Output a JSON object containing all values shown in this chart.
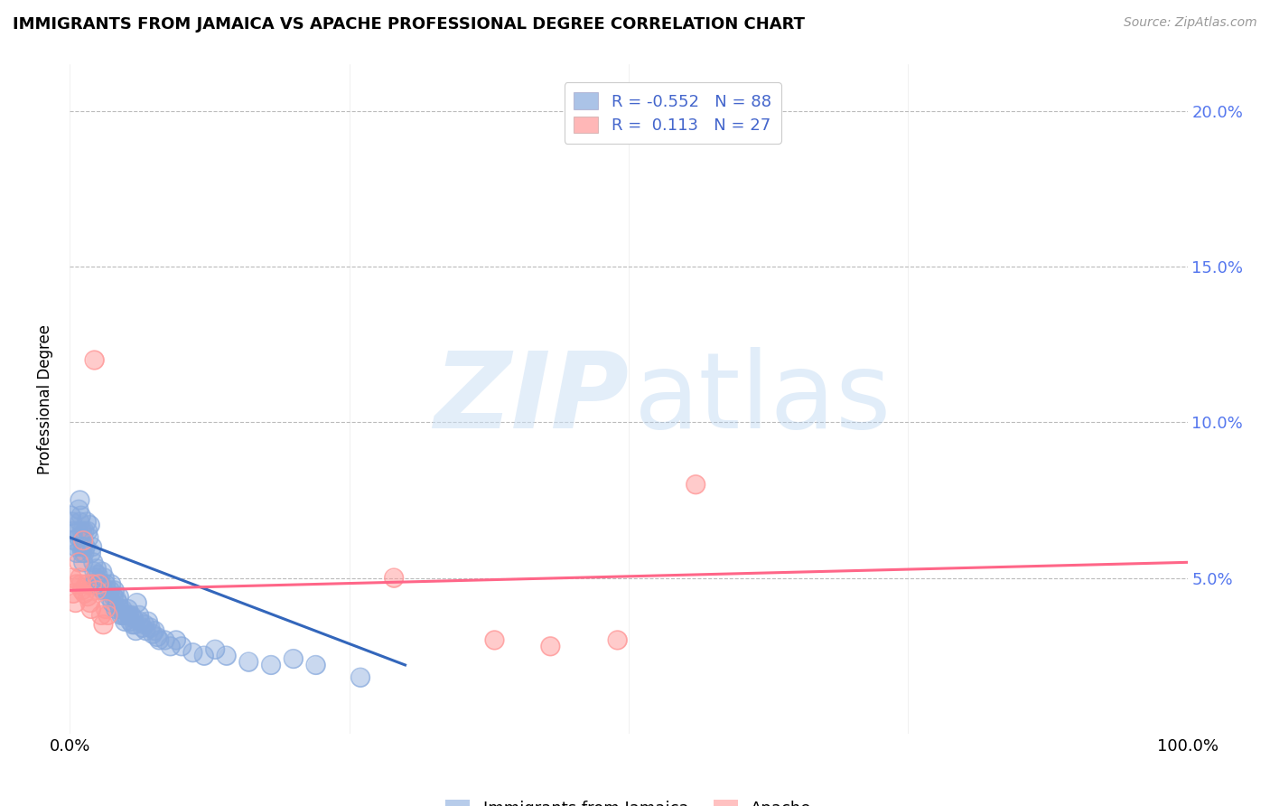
{
  "title": "IMMIGRANTS FROM JAMAICA VS APACHE PROFESSIONAL DEGREE CORRELATION CHART",
  "source": "Source: ZipAtlas.com",
  "ylabel": "Professional Degree",
  "ytick_vals": [
    0.05,
    0.1,
    0.15,
    0.2
  ],
  "ytick_labels": [
    "5.0%",
    "10.0%",
    "15.0%",
    "20.0%"
  ],
  "xlim": [
    0.0,
    1.0
  ],
  "ylim": [
    0.0,
    0.215
  ],
  "jamaica_color": "#88AADD",
  "apache_color": "#FF9999",
  "jamaica_line_color": "#3366BB",
  "apache_line_color": "#FF6688",
  "legend_label1": "Immigrants from Jamaica",
  "legend_label2": "Apache",
  "legend_text_color": "#4466CC",
  "ytick_color": "#5577EE",
  "jamaica_x": [
    0.001,
    0.002,
    0.003,
    0.004,
    0.005,
    0.006,
    0.007,
    0.008,
    0.008,
    0.009,
    0.009,
    0.01,
    0.01,
    0.011,
    0.011,
    0.012,
    0.012,
    0.013,
    0.013,
    0.014,
    0.015,
    0.016,
    0.017,
    0.018,
    0.019,
    0.02,
    0.021,
    0.022,
    0.023,
    0.024,
    0.025,
    0.026,
    0.027,
    0.028,
    0.029,
    0.03,
    0.031,
    0.032,
    0.033,
    0.035,
    0.036,
    0.037,
    0.038,
    0.039,
    0.04,
    0.041,
    0.042,
    0.043,
    0.044,
    0.045,
    0.046,
    0.047,
    0.048,
    0.049,
    0.05,
    0.052,
    0.053,
    0.054,
    0.055,
    0.056,
    0.057,
    0.058,
    0.059,
    0.06,
    0.062,
    0.063,
    0.065,
    0.067,
    0.068,
    0.07,
    0.072,
    0.074,
    0.076,
    0.078,
    0.08,
    0.085,
    0.09,
    0.095,
    0.1,
    0.11,
    0.12,
    0.13,
    0.14,
    0.16,
    0.18,
    0.2,
    0.22,
    0.26
  ],
  "jamaica_y": [
    0.07,
    0.068,
    0.065,
    0.062,
    0.06,
    0.058,
    0.065,
    0.072,
    0.063,
    0.075,
    0.068,
    0.07,
    0.06,
    0.065,
    0.058,
    0.06,
    0.055,
    0.058,
    0.065,
    0.06,
    0.068,
    0.065,
    0.063,
    0.067,
    0.058,
    0.06,
    0.055,
    0.052,
    0.05,
    0.053,
    0.051,
    0.049,
    0.047,
    0.048,
    0.052,
    0.046,
    0.05,
    0.048,
    0.046,
    0.044,
    0.046,
    0.048,
    0.042,
    0.044,
    0.046,
    0.04,
    0.043,
    0.042,
    0.044,
    0.04,
    0.038,
    0.04,
    0.038,
    0.036,
    0.038,
    0.04,
    0.038,
    0.036,
    0.038,
    0.035,
    0.037,
    0.035,
    0.033,
    0.042,
    0.038,
    0.036,
    0.034,
    0.035,
    0.033,
    0.036,
    0.034,
    0.032,
    0.033,
    0.031,
    0.03,
    0.03,
    0.028,
    0.03,
    0.028,
    0.026,
    0.025,
    0.027,
    0.025,
    0.023,
    0.022,
    0.024,
    0.022,
    0.018
  ],
  "apache_x": [
    0.002,
    0.003,
    0.005,
    0.006,
    0.008,
    0.009,
    0.01,
    0.011,
    0.012,
    0.013,
    0.015,
    0.016,
    0.018,
    0.019,
    0.02,
    0.022,
    0.024,
    0.026,
    0.028,
    0.03,
    0.032,
    0.034,
    0.29,
    0.38,
    0.43,
    0.49,
    0.56
  ],
  "apache_y": [
    0.05,
    0.045,
    0.042,
    0.048,
    0.055,
    0.05,
    0.048,
    0.046,
    0.062,
    0.045,
    0.048,
    0.044,
    0.042,
    0.04,
    0.048,
    0.12,
    0.046,
    0.048,
    0.038,
    0.035,
    0.04,
    0.038,
    0.05,
    0.03,
    0.028,
    0.03,
    0.08
  ],
  "jamaica_trend_x": [
    0.0,
    0.3
  ],
  "jamaica_trend_y": [
    0.063,
    0.022
  ],
  "apache_trend_x": [
    0.0,
    1.0
  ],
  "apache_trend_y": [
    0.046,
    0.055
  ]
}
